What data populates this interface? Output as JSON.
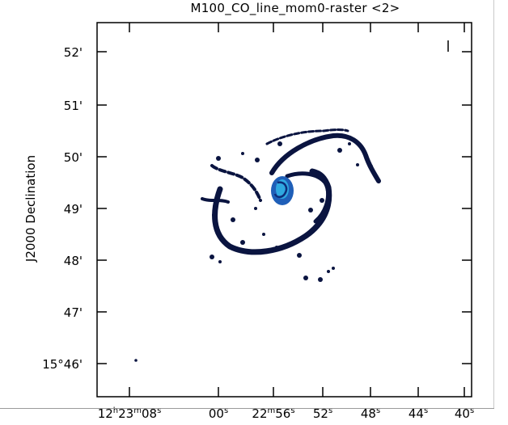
{
  "viewer": {
    "title": "M100_CO_line_mom0-raster <2>",
    "y_axis_label": "J2000 Declination",
    "y_ticks": [
      "52'",
      "51'",
      "50'",
      "49'",
      "48'",
      "47'",
      "15°46'"
    ],
    "x_ticks": [
      {
        "h": "12",
        "hu": "h",
        "m": "23",
        "mu": "m",
        "s": "08",
        "su": "s"
      },
      {
        "s": "00",
        "su": "s"
      },
      {
        "m": "22",
        "mu": "m",
        "s": "56",
        "su": "s"
      },
      {
        "s": "52",
        "su": "s"
      },
      {
        "s": "48",
        "su": "s"
      },
      {
        "s": "44",
        "su": "s"
      },
      {
        "s": "40",
        "su": "s"
      }
    ],
    "colors": {
      "emission_core": "#2fa8e0",
      "emission_mid": "#1f5fb8",
      "emission_arms": "#0a1440",
      "axes": "#000000"
    }
  }
}
